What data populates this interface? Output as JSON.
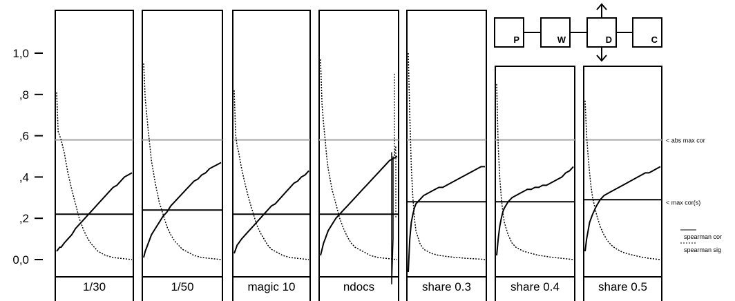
{
  "chart_data": {
    "type": "line",
    "y_ticks": [
      "0,0",
      ",2",
      ",4",
      ",6",
      ",8",
      "1,0"
    ],
    "ylim": [
      -0.2,
      1.2
    ],
    "x": [
      0.0,
      0.02,
      0.04,
      0.06,
      0.08,
      0.1,
      0.15,
      0.2,
      0.25,
      0.3,
      0.35,
      0.4,
      0.45,
      0.5,
      0.55,
      0.6,
      0.65,
      0.7,
      0.75,
      0.8,
      0.85,
      0.9,
      0.95,
      1.0
    ],
    "reference_line": {
      "name": "abs max cor",
      "value": 0.58,
      "color": "#a6a6a6"
    },
    "panels": [
      {
        "label": "1/30",
        "max_cor": 0.22,
        "spearman_cor": [
          0.04,
          0.05,
          0.06,
          0.06,
          0.07,
          0.08,
          0.1,
          0.12,
          0.15,
          0.17,
          0.19,
          0.21,
          0.23,
          0.25,
          0.27,
          0.29,
          0.31,
          0.33,
          0.35,
          0.36,
          0.38,
          0.4,
          0.41,
          0.42
        ],
        "spearman_sig": [
          0.81,
          0.62,
          0.6,
          0.58,
          0.55,
          0.52,
          0.42,
          0.34,
          0.27,
          0.2,
          0.15,
          0.11,
          0.08,
          0.06,
          0.04,
          0.03,
          0.02,
          0.015,
          0.01,
          0.008,
          0.006,
          0.004,
          0.002,
          0.0
        ]
      },
      {
        "label": "1/50",
        "max_cor": 0.24,
        "spearman_cor": [
          0.01,
          0.04,
          0.06,
          0.08,
          0.1,
          0.12,
          0.15,
          0.18,
          0.21,
          0.23,
          0.26,
          0.28,
          0.3,
          0.32,
          0.34,
          0.36,
          0.38,
          0.39,
          0.41,
          0.42,
          0.44,
          0.45,
          0.46,
          0.47
        ],
        "spearman_sig": [
          0.95,
          0.78,
          0.7,
          0.62,
          0.55,
          0.48,
          0.37,
          0.28,
          0.22,
          0.16,
          0.12,
          0.09,
          0.07,
          0.05,
          0.04,
          0.03,
          0.02,
          0.015,
          0.01,
          0.008,
          0.006,
          0.004,
          0.002,
          0.0
        ]
      },
      {
        "label": "magic 10",
        "max_cor": 0.22,
        "spearman_cor": [
          0.03,
          0.05,
          0.07,
          0.08,
          0.09,
          0.1,
          0.12,
          0.14,
          0.16,
          0.18,
          0.2,
          0.22,
          0.24,
          0.26,
          0.27,
          0.29,
          0.31,
          0.33,
          0.35,
          0.37,
          0.38,
          0.4,
          0.41,
          0.43
        ],
        "spearman_sig": [
          0.82,
          0.6,
          0.55,
          0.52,
          0.48,
          0.44,
          0.36,
          0.29,
          0.23,
          0.17,
          0.13,
          0.1,
          0.07,
          0.05,
          0.04,
          0.03,
          0.02,
          0.015,
          0.01,
          0.008,
          0.006,
          0.004,
          0.002,
          0.0
        ]
      },
      {
        "label": "ndocs",
        "max_cor": 0.22,
        "spearman_cor": [
          0.02,
          0.05,
          0.08,
          0.1,
          0.12,
          0.14,
          0.17,
          0.2,
          0.22,
          0.24,
          0.26,
          0.28,
          0.3,
          0.32,
          0.34,
          0.36,
          0.38,
          0.4,
          0.42,
          0.44,
          0.46,
          0.48,
          0.49,
          0.5
        ],
        "spearman_sig": [
          0.97,
          0.75,
          0.66,
          0.58,
          0.5,
          0.44,
          0.34,
          0.27,
          0.2,
          0.15,
          0.11,
          0.08,
          0.06,
          0.05,
          0.04,
          0.03,
          0.02,
          0.015,
          0.01,
          0.008,
          0.006,
          0.004,
          0.002,
          0.0
        ]
      },
      {
        "label": "share 0.3",
        "max_cor": 0.28,
        "spearman_cor": [
          -0.06,
          0.1,
          0.18,
          0.22,
          0.25,
          0.27,
          0.29,
          0.31,
          0.32,
          0.33,
          0.34,
          0.35,
          0.35,
          0.36,
          0.37,
          0.38,
          0.39,
          0.4,
          0.41,
          0.42,
          0.43,
          0.44,
          0.45,
          0.45
        ],
        "spearman_sig": [
          1.0,
          0.7,
          0.45,
          0.3,
          0.2,
          0.14,
          0.08,
          0.05,
          0.04,
          0.03,
          0.025,
          0.02,
          0.018,
          0.015,
          0.013,
          0.011,
          0.01,
          0.008,
          0.006,
          0.005,
          0.004,
          0.003,
          0.002,
          0.0
        ]
      },
      {
        "label": "share 0.4",
        "max_cor": 0.28,
        "spearman_cor": [
          0.02,
          0.1,
          0.16,
          0.2,
          0.23,
          0.25,
          0.28,
          0.3,
          0.31,
          0.32,
          0.33,
          0.34,
          0.34,
          0.35,
          0.35,
          0.36,
          0.36,
          0.37,
          0.38,
          0.39,
          0.4,
          0.42,
          0.43,
          0.45
        ],
        "spearman_sig": [
          0.85,
          0.55,
          0.4,
          0.3,
          0.23,
          0.18,
          0.12,
          0.08,
          0.06,
          0.05,
          0.04,
          0.035,
          0.03,
          0.025,
          0.02,
          0.018,
          0.015,
          0.012,
          0.01,
          0.008,
          0.006,
          0.004,
          0.002,
          0.0
        ]
      },
      {
        "label": "share 0.5",
        "max_cor": 0.29,
        "spearman_cor": [
          0.04,
          0.1,
          0.14,
          0.18,
          0.2,
          0.22,
          0.26,
          0.29,
          0.31,
          0.32,
          0.33,
          0.34,
          0.35,
          0.36,
          0.37,
          0.38,
          0.39,
          0.4,
          0.41,
          0.42,
          0.42,
          0.43,
          0.44,
          0.45
        ],
        "spearman_sig": [
          0.77,
          0.6,
          0.5,
          0.42,
          0.35,
          0.3,
          0.22,
          0.16,
          0.12,
          0.09,
          0.07,
          0.055,
          0.045,
          0.035,
          0.03,
          0.025,
          0.02,
          0.016,
          0.012,
          0.009,
          0.006,
          0.004,
          0.002,
          0.0
        ]
      }
    ],
    "right_labels": {
      "abs_max": "abs max cor",
      "max_cor": "max cor(s)"
    },
    "legend": {
      "solid": "spearman cor",
      "dotted": "spearman sig"
    },
    "pwdc_boxes": [
      "P",
      "W",
      "D",
      "C"
    ],
    "grid": false
  }
}
